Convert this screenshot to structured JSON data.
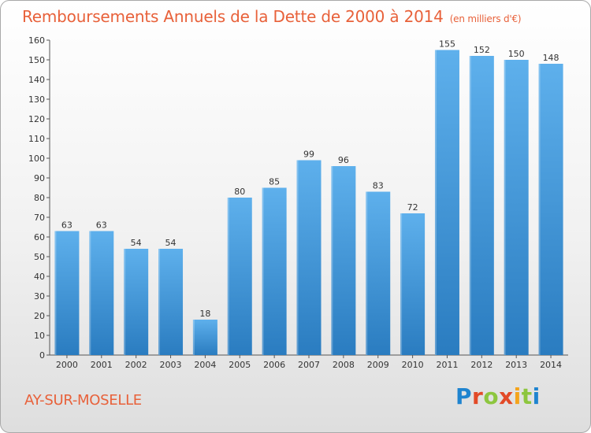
{
  "header": {
    "title": "Remboursements Annuels de la Dette de 2000 à 2014",
    "unit": "(en milliers d'€)"
  },
  "footer": {
    "commune": "AY-SUR-MOSELLE",
    "logo_letters": [
      "P",
      "r",
      "o",
      "x",
      "i",
      "t",
      "i"
    ]
  },
  "colors": {
    "accent": "#e8613a",
    "bar_top": "#5eb0ec",
    "bar_bottom": "#2a7cc0"
  },
  "chart_data": {
    "type": "bar",
    "title": "Remboursements Annuels de la Dette de 2000 à 2014",
    "xlabel": "",
    "ylabel": "",
    "categories": [
      "2000",
      "2001",
      "2002",
      "2003",
      "2004",
      "2005",
      "2006",
      "2007",
      "2008",
      "2009",
      "2010",
      "2011",
      "2012",
      "2013",
      "2014"
    ],
    "values": [
      63,
      63,
      54,
      54,
      18,
      80,
      85,
      99,
      96,
      83,
      72,
      155,
      152,
      150,
      148
    ],
    "ylim": [
      0,
      160
    ],
    "yticks": [
      0,
      10,
      20,
      30,
      40,
      50,
      60,
      70,
      80,
      90,
      100,
      110,
      120,
      130,
      140,
      150,
      160
    ],
    "grid": false,
    "data_labels": true
  }
}
